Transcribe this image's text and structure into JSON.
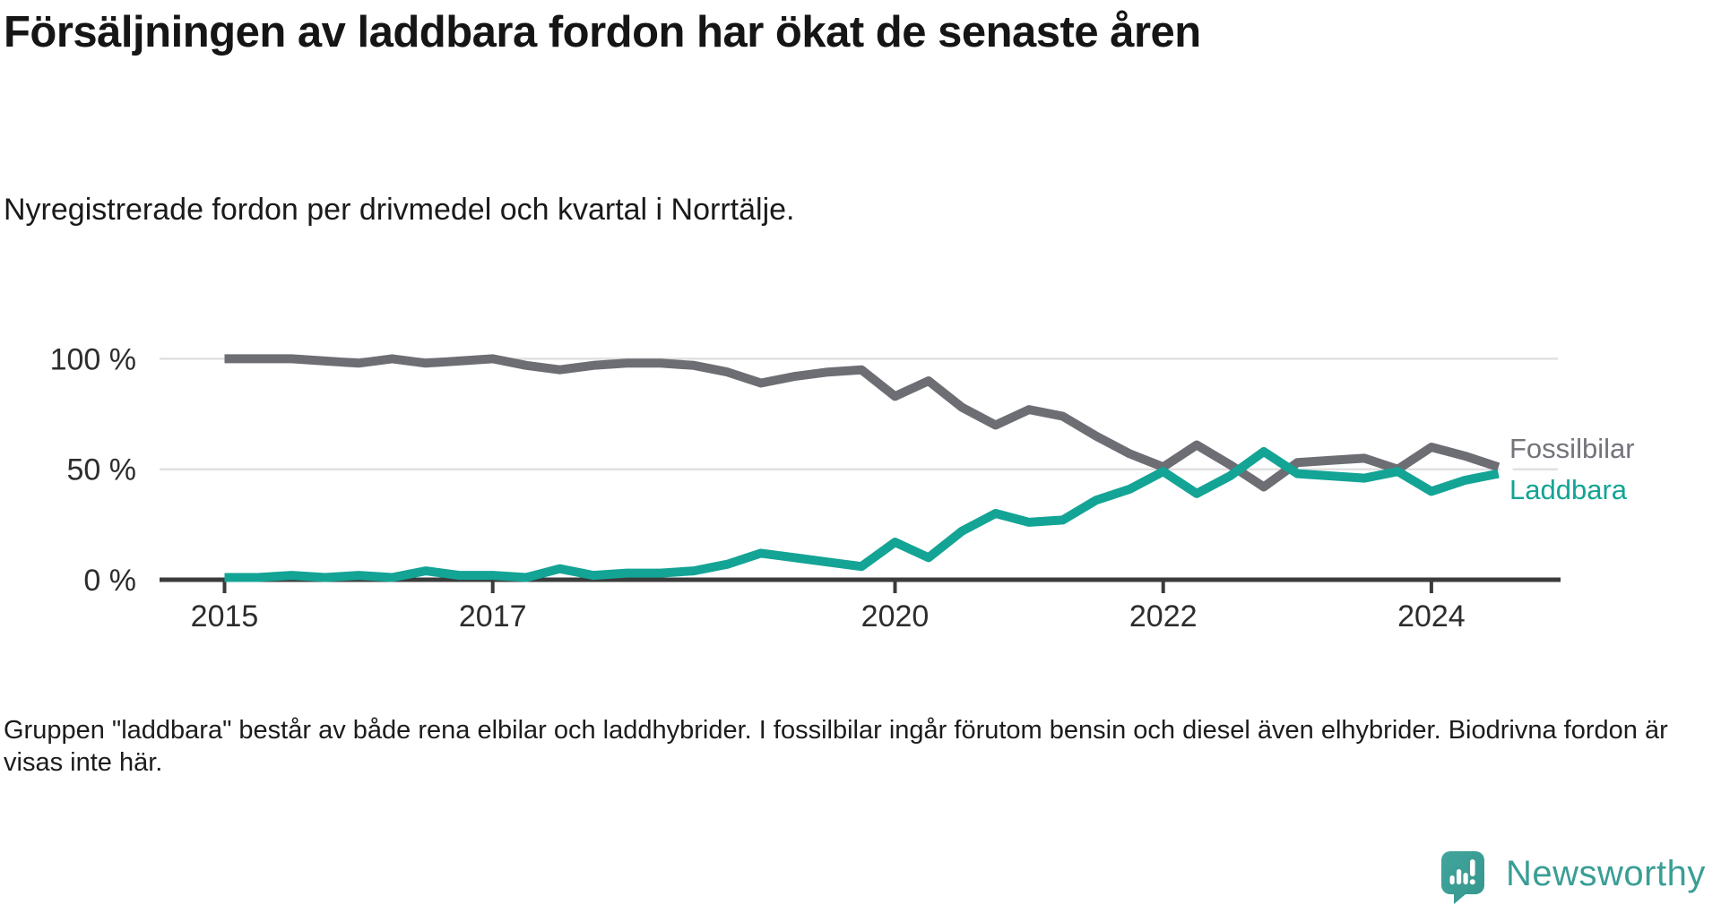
{
  "chart_data": {
    "type": "line",
    "title": "Försäljningen av laddbara fordon har ökat de senaste åren",
    "subtitle": "Nyregistrerade fordon per drivmedel och kvartal i Norrtälje.",
    "unit": "%",
    "ylim": [
      0,
      100
    ],
    "frequency": "quarterly",
    "x_range": [
      "2015 Q1",
      "2024 Q3"
    ],
    "y_tick_values": [
      100,
      50,
      0
    ],
    "y_tick_labels": [
      "100 %",
      "50 %",
      "0 %"
    ],
    "x_tick_labels": [
      "2015",
      "2017",
      "2020",
      "2022",
      "2024"
    ],
    "x_tick_quarter_indices": [
      0,
      8,
      20,
      28,
      36
    ],
    "grid": "horizontal",
    "legend_position": "end-of-line-right",
    "background_color": "#ffffff",
    "grid_color": "#e0e0e0",
    "axis_color": "#3b3b3b",
    "tick_label_color": "#2d2d2d",
    "series": [
      {
        "name": "Fossilbilar",
        "color": "#6d6d74",
        "values": [
          100,
          100,
          100,
          99,
          98,
          100,
          98,
          99,
          100,
          97,
          95,
          97,
          98,
          98,
          97,
          94,
          89,
          92,
          94,
          95,
          83,
          90,
          78,
          70,
          77,
          74,
          65,
          57,
          51,
          61,
          52,
          42,
          53,
          54,
          55,
          50,
          60,
          56,
          51
        ]
      },
      {
        "name": "Laddbara",
        "color": "#13a495",
        "values": [
          1,
          1,
          2,
          1,
          2,
          1,
          4,
          2,
          2,
          1,
          5,
          2,
          3,
          3,
          4,
          7,
          12,
          10,
          8,
          6,
          17,
          10,
          22,
          30,
          26,
          27,
          36,
          41,
          49,
          39,
          47,
          58,
          48,
          47,
          46,
          49,
          40,
          45,
          48
        ]
      }
    ]
  },
  "footnote": "Gruppen \"laddbara\" består av både rena elbilar och laddhybrider. I fossilbilar ingår förutom bensin och diesel även elhybrider. Biodrivna fordon är visas inte här.",
  "branding": {
    "logo_text": "Newsworthy",
    "logo_color": "#3a9e96",
    "icon_color": "#3b9b93"
  }
}
